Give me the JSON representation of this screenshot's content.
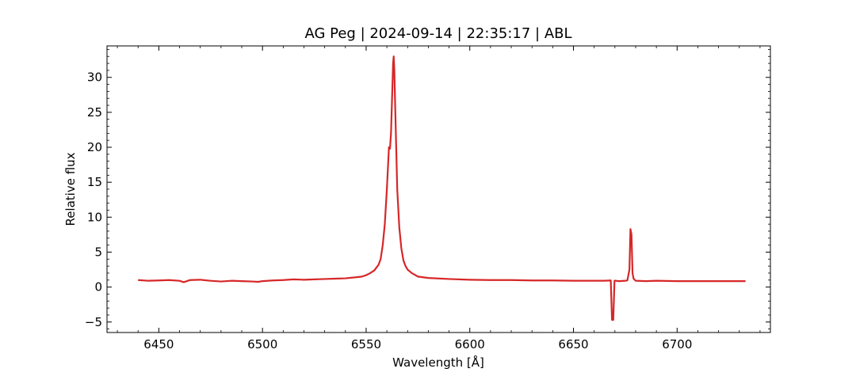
{
  "chart_data": {
    "type": "line",
    "title": "AG Peg | 2024-09-14 | 22:35:17 | ABL",
    "xlabel": "Wavelength [Å]",
    "ylabel": "Relative flux",
    "xlim": [
      6425,
      6745
    ],
    "ylim": [
      -6.5,
      34.5
    ],
    "xticks": [
      6450,
      6500,
      6550,
      6600,
      6650,
      6700
    ],
    "yticks": [
      -5,
      0,
      5,
      10,
      15,
      20,
      25,
      30
    ],
    "xtick_labels": [
      "6450",
      "6500",
      "6550",
      "6600",
      "6650",
      "6700"
    ],
    "ytick_labels": [
      "−5",
      "0",
      "5",
      "10",
      "15",
      "20",
      "25",
      "30"
    ],
    "grid": false,
    "line_color": "#d62728",
    "series": [
      {
        "x": [
          6440,
          6445,
          6450,
          6455,
          6460,
          6462,
          6465,
          6470,
          6475,
          6480,
          6485,
          6490,
          6495,
          6498,
          6500,
          6505,
          6510,
          6515,
          6520,
          6525,
          6530,
          6535,
          6540,
          6545,
          6548,
          6550,
          6552,
          6554,
          6556,
          6557,
          6558,
          6559,
          6560,
          6561,
          6561.5,
          6562,
          6562.5,
          6563,
          6563.3,
          6563.6,
          6564,
          6564.5,
          6565,
          6566,
          6567,
          6568,
          6569,
          6570,
          6572,
          6575,
          6580,
          6590,
          6600,
          6610,
          6620,
          6630,
          6640,
          6650,
          6660,
          6665,
          6668,
          6668.6,
          6669.2,
          6669.8,
          6670.5,
          6672,
          6675,
          6676,
          6677,
          6677.5,
          6678,
          6678.5,
          6679,
          6680,
          6685,
          6690,
          6700,
          6710,
          6720,
          6733
        ],
        "y": [
          1.0,
          0.9,
          0.95,
          1.0,
          0.9,
          0.7,
          1.0,
          1.05,
          0.9,
          0.8,
          0.9,
          0.85,
          0.8,
          0.75,
          0.85,
          0.95,
          1.0,
          1.1,
          1.05,
          1.1,
          1.15,
          1.2,
          1.25,
          1.4,
          1.5,
          1.7,
          2.0,
          2.4,
          3.2,
          4.0,
          6.0,
          9.0,
          14.0,
          20.0,
          19.8,
          22.0,
          27.0,
          32.0,
          33.0,
          31.0,
          26.0,
          20.0,
          14.0,
          8.5,
          5.5,
          3.8,
          3.0,
          2.5,
          2.0,
          1.5,
          1.3,
          1.15,
          1.05,
          1.0,
          1.0,
          0.95,
          0.95,
          0.9,
          0.9,
          0.9,
          0.95,
          -4.7,
          -4.7,
          0.9,
          0.9,
          0.85,
          0.9,
          0.95,
          2.5,
          8.3,
          7.5,
          2.0,
          1.2,
          0.9,
          0.85,
          0.9,
          0.85,
          0.85,
          0.85,
          0.85
        ]
      }
    ]
  }
}
